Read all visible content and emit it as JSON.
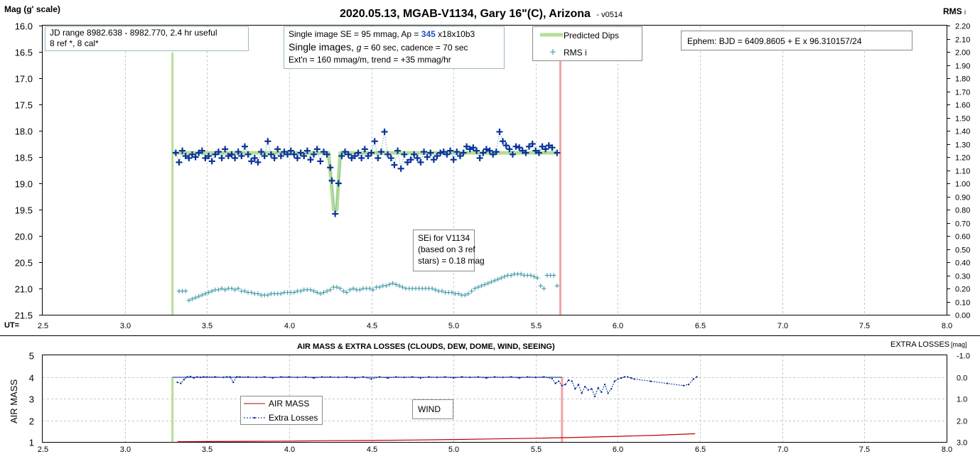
{
  "title": "2020.05.13, MGAB-V1134, Gary 16\"(C), Arizona",
  "version": "- v0514",
  "top_chart": {
    "ylabel": "Mag (g' scale)",
    "y2label": "RMS",
    "y2label_sub": "i",
    "ut_label": "UT=",
    "x_ticks": [
      "2.5",
      "3.0",
      "3.5",
      "4.0",
      "4.5",
      "5.0",
      "5.5",
      "6.0",
      "6.5",
      "7.0",
      "7.5",
      "8.0"
    ],
    "y_ticks": [
      "16.0",
      "16.5",
      "17.0",
      "17.5",
      "18.0",
      "18.5",
      "19.0",
      "19.5",
      "20.0",
      "20.5",
      "21.0",
      "21.5"
    ],
    "y2_ticks": [
      "2.20",
      "2.10",
      "2.00",
      "1.90",
      "1.80",
      "1.70",
      "1.60",
      "1.50",
      "1.40",
      "1.30",
      "1.20",
      "1.10",
      "1.00",
      "0.90",
      "0.80",
      "0.70",
      "0.60",
      "0.50",
      "0.40",
      "0.30",
      "0.20",
      "0.10",
      "0.00"
    ],
    "info_box": {
      "line1": "JD range 8982.638 - 8982.770, 2.4 hr useful",
      "line2": "8 ref *, 8 cal*"
    },
    "se_box": {
      "line1_a": "Single image SE = 95 mmag, Ap = ",
      "line1_b": "345",
      "line1_c": " x18x10b3",
      "line2_a": "Single images, ",
      "line2_b": "g",
      "line2_c": " = 60 sec, cadence = 70 sec",
      "line3": "Ext'n = 160 mmag/m, trend = +35 mmag/hr"
    },
    "legend": {
      "predicted": "Predicted Dips",
      "rms": "RMS i"
    },
    "ephem": "Ephem: BJD = 6409.8605 + E x 96.310157/24",
    "sei_box": {
      "line1": "SEi for V1134",
      "line2": "(based on 3 ref",
      "line3": "stars) = 0.18 mag"
    }
  },
  "bottom_chart": {
    "title": "AIR MASS & EXTRA LOSSES (CLOUDS, DEW, DOME, WIND, SEEING)",
    "ylabel": "AIR MASS",
    "y2label_a": "EXTRA LOSSES",
    "y2label_b": "[mag]",
    "x_ticks": [
      "2.5",
      "3.0",
      "3.5",
      "4.0",
      "4.5",
      "5.0",
      "5.5",
      "6.0",
      "6.5",
      "7.0",
      "7.5",
      "8.0"
    ],
    "y_ticks": [
      "5",
      "4",
      "3",
      "2",
      "1"
    ],
    "y2_ticks": [
      "-1.0",
      "0.0",
      "1.0",
      "2.0",
      "3.0"
    ],
    "legend": {
      "airmass": "AIR MASS",
      "losses": "Extra Losses"
    },
    "wind_label": "WIND"
  },
  "colors": {
    "mag_points": "#0a3399",
    "rms_points": "#3f9aa8",
    "predicted": "#b5dd98",
    "start_line": "#b5dd98",
    "end_line": "#f4a4a4",
    "airmass": "#c00000",
    "losses": "#0a2a99"
  },
  "chart_data": [
    {
      "type": "scatter",
      "title": "2020.05.13, MGAB-V1134, Gary 16\"(C), Arizona",
      "xlabel": "UT=",
      "ylabel": "Mag (g' scale)",
      "y2label": "RMS i",
      "xlim": [
        2.5,
        8.0
      ],
      "ylim": [
        21.5,
        16.0
      ],
      "y2lim": [
        0.0,
        2.2
      ],
      "grid": true,
      "legend_position": "top-center",
      "markers": {
        "observation_start": 3.29,
        "observation_end": 5.65
      },
      "series": [
        {
          "name": "Predicted Dips",
          "axis": "left",
          "style": "line",
          "x": [
            3.29,
            4.24,
            4.27,
            4.29,
            4.31,
            5.63
          ],
          "y": [
            18.42,
            18.42,
            19.5,
            19.5,
            18.42,
            18.42
          ]
        },
        {
          "name": "Mag",
          "axis": "left",
          "style": "plus",
          "x": [
            3.31,
            3.33,
            3.35,
            3.37,
            3.39,
            3.41,
            3.43,
            3.45,
            3.47,
            3.49,
            3.51,
            3.53,
            3.55,
            3.57,
            3.59,
            3.61,
            3.63,
            3.65,
            3.67,
            3.69,
            3.71,
            3.73,
            3.75,
            3.77,
            3.79,
            3.81,
            3.83,
            3.85,
            3.87,
            3.89,
            3.91,
            3.93,
            3.95,
            3.97,
            3.99,
            4.01,
            4.03,
            4.05,
            4.07,
            4.09,
            4.11,
            4.13,
            4.15,
            4.17,
            4.19,
            4.21,
            4.23,
            4.25,
            4.26,
            4.28,
            4.3,
            4.32,
            4.34,
            4.36,
            4.38,
            4.4,
            4.42,
            4.44,
            4.46,
            4.48,
            4.5,
            4.52,
            4.54,
            4.56,
            4.58,
            4.6,
            4.62,
            4.64,
            4.66,
            4.68,
            4.7,
            4.72,
            4.74,
            4.76,
            4.78,
            4.8,
            4.82,
            4.84,
            4.86,
            4.88,
            4.9,
            4.92,
            4.94,
            4.96,
            4.98,
            5.0,
            5.02,
            5.04,
            5.06,
            5.08,
            5.1,
            5.12,
            5.14,
            5.16,
            5.18,
            5.2,
            5.22,
            5.24,
            5.26,
            5.28,
            5.3,
            5.32,
            5.34,
            5.36,
            5.38,
            5.4,
            5.42,
            5.44,
            5.46,
            5.48,
            5.5,
            5.52,
            5.54,
            5.56,
            5.58,
            5.6,
            5.63
          ],
          "y": [
            18.42,
            18.6,
            18.38,
            18.48,
            18.52,
            18.45,
            18.5,
            18.42,
            18.38,
            18.52,
            18.48,
            18.58,
            18.45,
            18.4,
            18.52,
            18.35,
            18.48,
            18.45,
            18.52,
            18.4,
            18.48,
            18.3,
            18.45,
            18.58,
            18.52,
            18.6,
            18.4,
            18.48,
            18.2,
            18.45,
            18.52,
            18.35,
            18.48,
            18.4,
            18.45,
            18.38,
            18.45,
            18.52,
            18.42,
            18.48,
            18.38,
            18.55,
            18.45,
            18.35,
            18.58,
            18.4,
            18.45,
            18.7,
            18.95,
            19.58,
            19.0,
            18.48,
            18.4,
            18.45,
            18.52,
            18.48,
            18.42,
            18.52,
            18.35,
            18.48,
            18.42,
            18.2,
            18.52,
            18.4,
            18.02,
            18.45,
            18.52,
            18.65,
            18.38,
            18.72,
            18.45,
            18.6,
            18.55,
            18.45,
            18.52,
            18.6,
            18.4,
            18.5,
            18.42,
            18.55,
            18.48,
            18.42,
            18.4,
            18.45,
            18.38,
            18.55,
            18.4,
            18.48,
            18.42,
            18.3,
            18.35,
            18.32,
            18.38,
            18.52,
            18.42,
            18.35,
            18.38,
            18.45,
            18.4,
            18.02,
            18.2,
            18.28,
            18.35,
            18.45,
            18.3,
            18.32,
            18.38,
            18.42,
            18.3,
            18.25,
            18.38,
            18.42,
            18.3,
            18.35,
            18.28,
            18.32,
            18.42
          ]
        },
        {
          "name": "RMS i",
          "axis": "right",
          "style": "plus",
          "x": [
            3.33,
            3.35,
            3.37,
            3.39,
            3.41,
            3.43,
            3.45,
            3.47,
            3.49,
            3.51,
            3.53,
            3.55,
            3.57,
            3.59,
            3.61,
            3.63,
            3.65,
            3.67,
            3.69,
            3.71,
            3.73,
            3.75,
            3.77,
            3.79,
            3.81,
            3.83,
            3.85,
            3.87,
            3.89,
            3.91,
            3.93,
            3.95,
            3.97,
            3.99,
            4.01,
            4.03,
            4.05,
            4.07,
            4.09,
            4.11,
            4.13,
            4.15,
            4.17,
            4.19,
            4.21,
            4.23,
            4.25,
            4.27,
            4.29,
            4.31,
            4.33,
            4.35,
            4.37,
            4.39,
            4.41,
            4.43,
            4.45,
            4.47,
            4.49,
            4.51,
            4.53,
            4.55,
            4.57,
            4.59,
            4.61,
            4.63,
            4.65,
            4.67,
            4.69,
            4.71,
            4.73,
            4.75,
            4.77,
            4.79,
            4.81,
            4.83,
            4.85,
            4.87,
            4.89,
            4.91,
            4.93,
            4.95,
            4.97,
            4.99,
            5.01,
            5.03,
            5.05,
            5.07,
            5.09,
            5.11,
            5.13,
            5.15,
            5.17,
            5.19,
            5.21,
            5.23,
            5.25,
            5.27,
            5.29,
            5.31,
            5.33,
            5.35,
            5.37,
            5.39,
            5.41,
            5.43,
            5.45,
            5.47,
            5.49,
            5.51,
            5.53,
            5.55,
            5.57,
            5.59,
            5.61,
            5.63
          ],
          "y": [
            0.18,
            0.18,
            0.18,
            0.11,
            0.12,
            0.13,
            0.14,
            0.15,
            0.16,
            0.17,
            0.18,
            0.19,
            0.19,
            0.2,
            0.19,
            0.2,
            0.2,
            0.19,
            0.2,
            0.18,
            0.18,
            0.17,
            0.17,
            0.16,
            0.16,
            0.15,
            0.15,
            0.15,
            0.16,
            0.16,
            0.16,
            0.16,
            0.17,
            0.17,
            0.17,
            0.17,
            0.18,
            0.18,
            0.19,
            0.19,
            0.19,
            0.18,
            0.17,
            0.16,
            0.17,
            0.18,
            0.19,
            0.21,
            0.21,
            0.2,
            0.18,
            0.17,
            0.19,
            0.2,
            0.19,
            0.19,
            0.2,
            0.2,
            0.2,
            0.19,
            0.21,
            0.21,
            0.22,
            0.22,
            0.23,
            0.24,
            0.23,
            0.22,
            0.21,
            0.2,
            0.2,
            0.2,
            0.2,
            0.2,
            0.2,
            0.2,
            0.2,
            0.2,
            0.19,
            0.18,
            0.18,
            0.17,
            0.17,
            0.17,
            0.16,
            0.16,
            0.15,
            0.15,
            0.16,
            0.18,
            0.2,
            0.21,
            0.22,
            0.23,
            0.24,
            0.25,
            0.26,
            0.27,
            0.28,
            0.29,
            0.3,
            0.3,
            0.31,
            0.31,
            0.31,
            0.3,
            0.3,
            0.3,
            0.29,
            0.28,
            0.22,
            0.2,
            0.3,
            0.3,
            0.3,
            0.22
          ]
        }
      ]
    },
    {
      "type": "line",
      "title": "AIR MASS & EXTRA LOSSES (CLOUDS, DEW, DOME, WIND, SEEING)",
      "ylabel": "AIR MASS",
      "y2label": "EXTRA LOSSES [mag]",
      "xlim": [
        2.5,
        8.0
      ],
      "ylim": [
        1,
        5
      ],
      "y2lim": [
        3.0,
        -1.0
      ],
      "grid": true,
      "legend_position": "bottom-left",
      "markers": {
        "observation_start": 3.29,
        "observation_end": 5.66
      },
      "series": [
        {
          "name": "AIR MASS",
          "axis": "left",
          "x": [
            3.32,
            3.5,
            3.75,
            4.0,
            4.25,
            4.5,
            4.75,
            5.0,
            5.25,
            5.5,
            5.75,
            6.0,
            6.25,
            6.47
          ],
          "y": [
            1.01,
            1.02,
            1.03,
            1.04,
            1.06,
            1.07,
            1.09,
            1.11,
            1.14,
            1.17,
            1.21,
            1.26,
            1.31,
            1.38
          ]
        },
        {
          "name": "Extra Losses",
          "axis": "right",
          "x": [
            3.32,
            3.34,
            3.36,
            3.38,
            3.4,
            3.42,
            3.44,
            3.46,
            3.48,
            3.5,
            3.55,
            3.6,
            3.62,
            3.64,
            3.66,
            3.68,
            3.7,
            3.75,
            3.8,
            3.85,
            3.9,
            3.95,
            4.0,
            4.05,
            4.1,
            4.15,
            4.2,
            4.25,
            4.3,
            4.35,
            4.4,
            4.45,
            4.5,
            4.55,
            4.6,
            4.65,
            4.7,
            4.75,
            4.8,
            4.85,
            4.9,
            4.95,
            5.0,
            5.05,
            5.1,
            5.15,
            5.2,
            5.25,
            5.3,
            5.35,
            5.4,
            5.45,
            5.5,
            5.55,
            5.6,
            5.62,
            5.64,
            5.66,
            5.68,
            5.7,
            5.72,
            5.74,
            5.76,
            5.78,
            5.8,
            5.82,
            5.84,
            5.86,
            5.88,
            5.9,
            5.92,
            5.94,
            5.96,
            5.98,
            6.0,
            6.02,
            6.04,
            6.06,
            6.08,
            6.1,
            6.2,
            6.3,
            6.4,
            6.43,
            6.46,
            6.48
          ],
          "y": [
            0.25,
            0.3,
            0.12,
            0.0,
            -0.02,
            0.05,
            0.0,
            0.02,
            0.0,
            0.0,
            0.0,
            0.02,
            0.0,
            0.0,
            0.25,
            0.0,
            0.0,
            0.0,
            0.02,
            0.0,
            0.05,
            0.0,
            0.0,
            0.02,
            0.0,
            0.05,
            0.0,
            0.0,
            0.02,
            0.0,
            0.05,
            0.0,
            0.1,
            0.0,
            0.05,
            0.0,
            0.02,
            0.0,
            0.05,
            0.0,
            0.02,
            0.0,
            0.05,
            0.0,
            0.02,
            0.0,
            0.05,
            0.0,
            0.02,
            0.0,
            0.05,
            0.0,
            0.02,
            0.0,
            0.08,
            0.3,
            0.2,
            0.4,
            0.35,
            0.15,
            0.2,
            0.55,
            0.35,
            0.75,
            0.45,
            0.6,
            0.55,
            0.9,
            0.5,
            0.7,
            0.35,
            0.75,
            0.55,
            0.2,
            0.1,
            0.05,
            0.0,
            0.0,
            0.05,
            0.1,
            0.2,
            0.3,
            0.4,
            0.35,
            0.1,
            0.0
          ]
        }
      ]
    }
  ]
}
